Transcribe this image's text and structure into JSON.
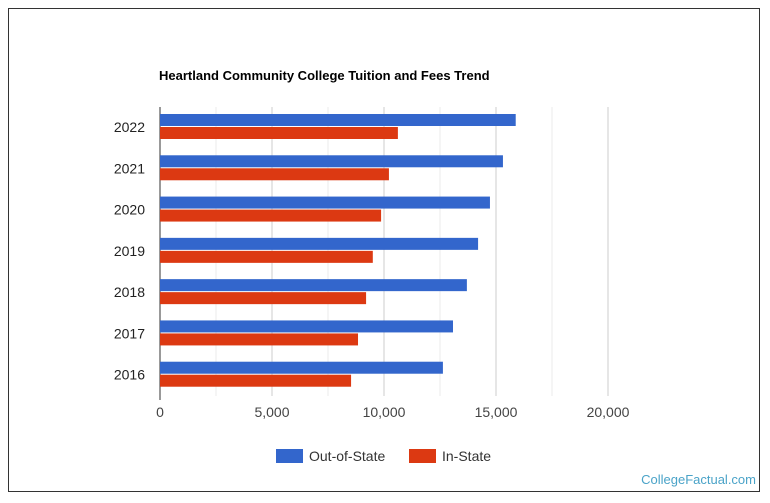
{
  "chart_data": {
    "type": "bar",
    "orientation": "horizontal",
    "title": "Heartland Community College Tuition and Fees Trend",
    "categories": [
      "2022",
      "2021",
      "2020",
      "2019",
      "2018",
      "2017",
      "2016"
    ],
    "series": [
      {
        "name": "Out-of-State",
        "color": "#3366cc",
        "values": [
          15880,
          15310,
          14730,
          14200,
          13700,
          13080,
          12630
        ]
      },
      {
        "name": "In-State",
        "color": "#dc3912",
        "values": [
          10620,
          10220,
          9870,
          9500,
          9200,
          8840,
          8530
        ]
      }
    ],
    "xlim": [
      0,
      20000
    ],
    "xticks": [
      "0",
      "5,000",
      "10,000",
      "15,000",
      "20,000"
    ],
    "xtick_values": [
      0,
      5000,
      10000,
      15000,
      20000
    ],
    "grid": true,
    "legend": "bottom"
  },
  "credit": "CollegeFactual.com"
}
